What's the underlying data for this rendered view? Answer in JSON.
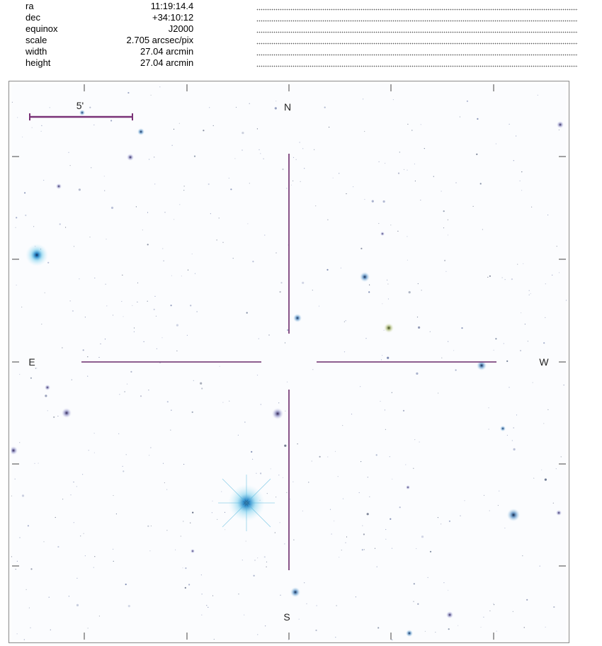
{
  "info": {
    "rows": [
      {
        "key": "ra",
        "value": "11:19:14.4"
      },
      {
        "key": "dec",
        "value": "+34:10:12"
      },
      {
        "key": "equinox",
        "value": "J2000"
      },
      {
        "key": "scale",
        "value": "2.705 arcsec/pix"
      },
      {
        "key": "width",
        "value": "27.04 arcmin"
      },
      {
        "key": "height",
        "value": "27.04 arcmin"
      }
    ]
  },
  "image": {
    "scale_bar_label": "5'",
    "compass": {
      "north": "N",
      "south": "S",
      "east": "E",
      "west": "W"
    },
    "colors": {
      "crosshair": "#6b2a6b",
      "scale_bar": "#7a3277",
      "ticks": "#444444",
      "background": "#fbfcfe",
      "star_glow": "#2a9fd6"
    }
  }
}
